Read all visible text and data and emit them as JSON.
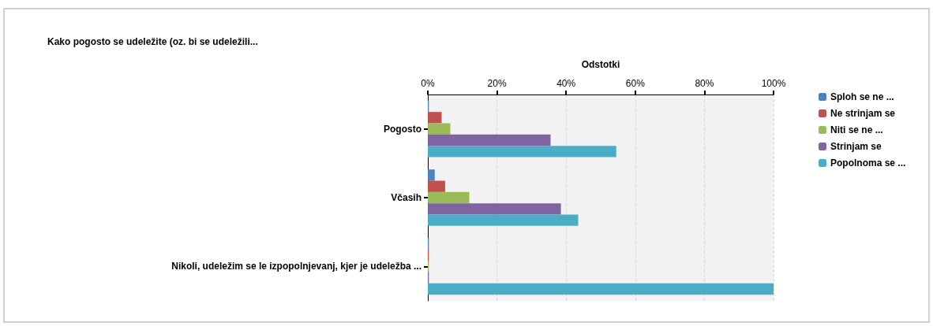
{
  "chart_data": {
    "type": "bar",
    "orientation": "horizontal",
    "title": "Kako pogosto se udeležite (oz. bi se udeležili...",
    "xlabel": "Odstotki",
    "categories": [
      "Pogosto",
      "Včasih",
      "Nikoli, udeležim se le izpopolnjevanj, kjer je udeležba ..."
    ],
    "series": [
      {
        "name": "Sploh se ne ...",
        "color": "#4f81bd",
        "values": [
          0.3,
          2,
          0.3
        ]
      },
      {
        "name": "Ne strinjam se",
        "color": "#c0504d",
        "values": [
          4,
          5,
          0.3
        ]
      },
      {
        "name": "Niti se ne ...",
        "color": "#9bbb59",
        "values": [
          6.5,
          12,
          0.3
        ]
      },
      {
        "name": "Strinjam se",
        "color": "#8064a2",
        "values": [
          35.5,
          38.5,
          0.3
        ]
      },
      {
        "name": "Popolnoma se ...",
        "color": "#4bacc6",
        "values": [
          54.5,
          43.5,
          100
        ]
      }
    ],
    "xlim": [
      0,
      100
    ],
    "xticks": [
      {
        "value": 0,
        "label": "0%"
      },
      {
        "value": 20,
        "label": "20%"
      },
      {
        "value": 40,
        "label": "40%"
      },
      {
        "value": 60,
        "label": "60%"
      },
      {
        "value": 80,
        "label": "80%"
      },
      {
        "value": 100,
        "label": "100%"
      }
    ],
    "grid": "x",
    "legend": "right"
  }
}
